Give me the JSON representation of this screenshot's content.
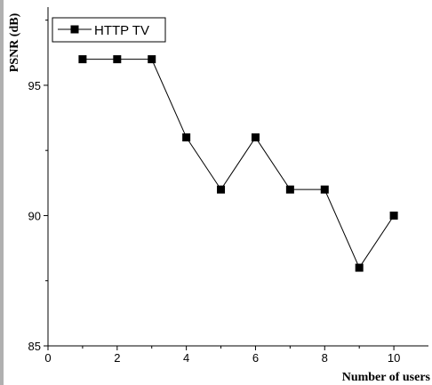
{
  "chart_data": {
    "type": "line",
    "title": "",
    "xlabel": "Number of users",
    "ylabel": "PSNR (dB)",
    "xlim": [
      0,
      11
    ],
    "ylim": [
      85,
      98
    ],
    "x_ticks": [
      0,
      2,
      4,
      6,
      8,
      10
    ],
    "y_ticks": [
      85,
      90,
      95
    ],
    "grid": false,
    "legend_position": "top-left",
    "series": [
      {
        "name": "HTTP TV",
        "marker": "square",
        "color": "#000000",
        "x": [
          1,
          2,
          3,
          4,
          5,
          6,
          7,
          8,
          9,
          10
        ],
        "y": [
          96,
          96,
          96,
          93,
          91,
          93,
          91,
          91,
          88,
          90
        ]
      }
    ]
  }
}
